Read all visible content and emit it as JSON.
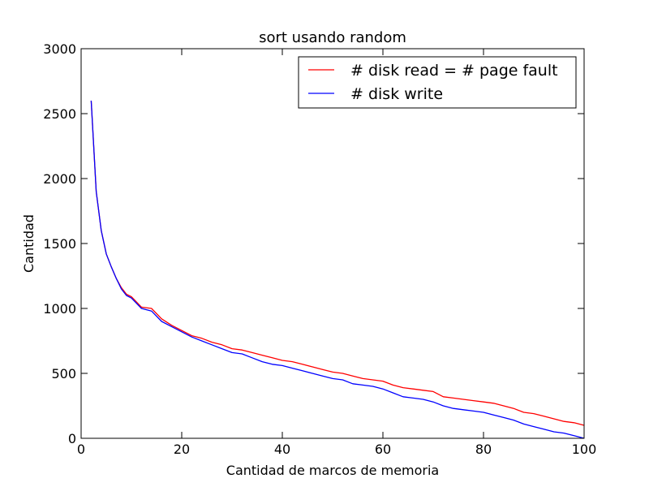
{
  "chart_data": {
    "type": "line",
    "title": "sort usando random",
    "xlabel": "Cantidad de marcos de memoria",
    "ylabel": "Cantidad",
    "xlim": [
      0,
      100
    ],
    "ylim": [
      0,
      3000
    ],
    "x_ticks": [
      0,
      20,
      40,
      60,
      80,
      100
    ],
    "y_ticks": [
      0,
      500,
      1000,
      1500,
      2000,
      2500,
      3000
    ],
    "grid": false,
    "legend_position": "top-right",
    "x": [
      2,
      3,
      4,
      5,
      6,
      7,
      8,
      9,
      10,
      12,
      14,
      16,
      18,
      20,
      22,
      24,
      26,
      28,
      30,
      32,
      34,
      36,
      38,
      40,
      42,
      44,
      46,
      48,
      50,
      52,
      54,
      56,
      58,
      60,
      62,
      64,
      66,
      68,
      70,
      72,
      74,
      76,
      78,
      80,
      82,
      84,
      86,
      88,
      90,
      92,
      94,
      96,
      98,
      100
    ],
    "series": [
      {
        "name": "# disk read = # page fault",
        "color": "#ff0000",
        "values": [
          2600,
          1900,
          1600,
          1420,
          1320,
          1230,
          1160,
          1110,
          1090,
          1010,
          1000,
          920,
          870,
          830,
          790,
          770,
          740,
          720,
          690,
          680,
          660,
          640,
          620,
          600,
          590,
          570,
          550,
          530,
          510,
          500,
          480,
          460,
          450,
          440,
          410,
          390,
          380,
          370,
          360,
          320,
          310,
          300,
          290,
          280,
          270,
          250,
          230,
          200,
          190,
          170,
          150,
          130,
          120,
          100
        ]
      },
      {
        "name": "# disk write",
        "color": "#0000ff",
        "values": [
          2600,
          1900,
          1600,
          1420,
          1320,
          1230,
          1150,
          1100,
          1080,
          1000,
          980,
          900,
          860,
          820,
          780,
          750,
          720,
          690,
          660,
          650,
          620,
          590,
          570,
          560,
          540,
          520,
          500,
          480,
          460,
          450,
          420,
          410,
          400,
          380,
          350,
          320,
          310,
          300,
          280,
          250,
          230,
          220,
          210,
          200,
          180,
          160,
          140,
          110,
          90,
          70,
          50,
          40,
          20,
          0
        ]
      }
    ]
  }
}
